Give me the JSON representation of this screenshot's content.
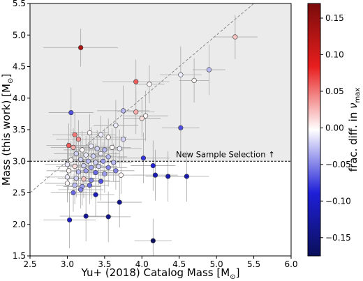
{
  "chart_data": {
    "type": "scatter",
    "xlabel_main": "Yu+ (2018) Catalog Mass [M",
    "xlabel_unit": "⊙",
    "xlabel_close": "]",
    "ylabel_main": "Mass (this work) [M",
    "ylabel_unit": "⊙",
    "ylabel_close": "]",
    "xlim": [
      2.5,
      6.0
    ],
    "ylim": [
      1.5,
      5.5
    ],
    "xticks": [
      "2.5",
      "3.0",
      "3.5",
      "4.0",
      "4.5",
      "5.0",
      "5.5",
      "6.0"
    ],
    "yticks": [
      "1.5",
      "2.0",
      "2.5",
      "3.0",
      "3.5",
      "4.0",
      "4.5",
      "5.0",
      "5.5"
    ],
    "selection_threshold": 3.0,
    "selection_label": "New Sample Selection ↑",
    "colorbar": {
      "label_main": "frac. diff. in ",
      "label_symbol": "ν",
      "label_sub": "max",
      "range": [
        -0.175,
        0.17
      ],
      "ticks": [
        "0.15",
        "0.10",
        "0.05",
        "0.00",
        "−0.05",
        "−0.10",
        "−0.15"
      ],
      "tick_values": [
        0.15,
        0.1,
        0.05,
        0.0,
        -0.05,
        -0.1,
        -0.15
      ],
      "colors": [
        "#0a0f5a",
        "#1f1fd8",
        "#ffffff",
        "#e81e1e",
        "#7a0b0b"
      ]
    },
    "points": [
      {
        "x": 5.25,
        "y": 4.97,
        "xe": 0.3,
        "ye": 0.35,
        "c": 0.02
      },
      {
        "x": 4.9,
        "y": 4.45,
        "xe": 0.22,
        "ye": 0.4,
        "c": -0.03
      },
      {
        "x": 4.7,
        "y": 4.28,
        "xe": 0.2,
        "ye": 0.35,
        "c": 0.0
      },
      {
        "x": 4.52,
        "y": 4.37,
        "xe": 0.28,
        "ye": 0.45,
        "c": -0.01
      },
      {
        "x": 4.1,
        "y": 4.22,
        "xe": 0.2,
        "ye": 0.3,
        "c": 0.0
      },
      {
        "x": 3.92,
        "y": 4.26,
        "xe": 0.45,
        "ye": 0.35,
        "c": 0.06
      },
      {
        "x": 3.18,
        "y": 4.8,
        "xe": 0.5,
        "ye": 0.3,
        "c": 0.13
      },
      {
        "x": 4.05,
        "y": 3.72,
        "xe": 0.3,
        "ye": 0.4,
        "c": 0.0
      },
      {
        "x": 4.0,
        "y": 3.68,
        "xe": 0.25,
        "ye": 0.3,
        "c": 0.01
      },
      {
        "x": 3.75,
        "y": 3.8,
        "xe": 0.35,
        "ye": 0.4,
        "c": -0.03
      },
      {
        "x": 3.92,
        "y": 3.78,
        "xe": 0.25,
        "ye": 0.35,
        "c": 0.03
      },
      {
        "x": 3.05,
        "y": 3.77,
        "xe": 0.3,
        "ye": 0.4,
        "c": -0.07
      },
      {
        "x": 3.65,
        "y": 3.57,
        "xe": 0.3,
        "ye": 0.4,
        "c": -0.01
      },
      {
        "x": 4.52,
        "y": 3.53,
        "xe": 0.25,
        "ye": 0.4,
        "c": -0.07
      },
      {
        "x": 3.1,
        "y": 3.42,
        "xe": 0.3,
        "ye": 0.35,
        "c": 0.05
      },
      {
        "x": 3.15,
        "y": 3.35,
        "xe": 0.3,
        "ye": 0.3,
        "c": 0.04
      },
      {
        "x": 3.3,
        "y": 3.45,
        "xe": 0.25,
        "ye": 0.3,
        "c": 0.0
      },
      {
        "x": 3.45,
        "y": 3.42,
        "xe": 0.2,
        "ye": 0.3,
        "c": -0.01
      },
      {
        "x": 3.55,
        "y": 3.38,
        "xe": 0.25,
        "ye": 0.3,
        "c": 0.0
      },
      {
        "x": 3.75,
        "y": 3.35,
        "xe": 0.3,
        "ye": 0.35,
        "c": -0.02
      },
      {
        "x": 3.02,
        "y": 3.25,
        "xe": 0.3,
        "ye": 0.35,
        "c": 0.06
      },
      {
        "x": 3.08,
        "y": 3.22,
        "xe": 0.3,
        "ye": 0.3,
        "c": 0.03
      },
      {
        "x": 3.2,
        "y": 3.18,
        "xe": 0.25,
        "ye": 0.3,
        "c": 0.0
      },
      {
        "x": 3.32,
        "y": 3.24,
        "xe": 0.25,
        "ye": 0.3,
        "c": -0.01
      },
      {
        "x": 3.4,
        "y": 3.2,
        "xe": 0.25,
        "ye": 0.3,
        "c": -0.02
      },
      {
        "x": 3.5,
        "y": 3.18,
        "xe": 0.25,
        "ye": 0.35,
        "c": -0.03
      },
      {
        "x": 3.6,
        "y": 3.22,
        "xe": 0.25,
        "ye": 0.3,
        "c": 0.0
      },
      {
        "x": 3.7,
        "y": 3.2,
        "xe": 0.3,
        "ye": 0.3,
        "c": -0.01
      },
      {
        "x": 3.12,
        "y": 3.12,
        "xe": 0.3,
        "ye": 0.3,
        "c": -0.02
      },
      {
        "x": 3.25,
        "y": 3.1,
        "xe": 0.25,
        "ye": 0.3,
        "c": -0.01
      },
      {
        "x": 3.35,
        "y": 3.08,
        "xe": 0.25,
        "ye": 0.3,
        "c": -0.02
      },
      {
        "x": 3.45,
        "y": 3.12,
        "xe": 0.25,
        "ye": 0.3,
        "c": -0.01
      },
      {
        "x": 3.55,
        "y": 3.07,
        "xe": 0.25,
        "ye": 0.3,
        "c": -0.03
      },
      {
        "x": 4.02,
        "y": 3.05,
        "xe": 0.35,
        "ye": 0.4,
        "c": -0.08
      },
      {
        "x": 3.05,
        "y": 3.02,
        "xe": 0.3,
        "ye": 0.3,
        "c": 0.0
      },
      {
        "x": 3.18,
        "y": 3.03,
        "xe": 0.25,
        "ye": 0.3,
        "c": -0.02
      },
      {
        "x": 3.28,
        "y": 3.0,
        "xe": 0.25,
        "ye": 0.3,
        "c": -0.03
      },
      {
        "x": 3.38,
        "y": 2.98,
        "xe": 0.25,
        "ye": 0.3,
        "c": -0.02
      },
      {
        "x": 3.48,
        "y": 3.0,
        "xe": 0.25,
        "ye": 0.3,
        "c": -0.04
      },
      {
        "x": 3.62,
        "y": 2.98,
        "xe": 0.25,
        "ye": 0.3,
        "c": -0.03
      },
      {
        "x": 3.0,
        "y": 2.95,
        "xe": 0.3,
        "ye": 0.35,
        "c": -0.01
      },
      {
        "x": 3.1,
        "y": 2.92,
        "xe": 0.25,
        "ye": 0.3,
        "c": 0.01
      },
      {
        "x": 3.22,
        "y": 2.93,
        "xe": 0.25,
        "ye": 0.3,
        "c": -0.02
      },
      {
        "x": 3.32,
        "y": 2.9,
        "xe": 0.25,
        "ye": 0.3,
        "c": -0.04
      },
      {
        "x": 3.42,
        "y": 2.92,
        "xe": 0.25,
        "ye": 0.3,
        "c": -0.02
      },
      {
        "x": 3.55,
        "y": 2.9,
        "xe": 0.25,
        "ye": 0.3,
        "c": -0.05
      },
      {
        "x": 4.15,
        "y": 2.93,
        "xe": 0.3,
        "ye": 0.4,
        "c": -0.09
      },
      {
        "x": 3.02,
        "y": 2.85,
        "xe": 0.3,
        "ye": 0.3,
        "c": 0.0
      },
      {
        "x": 3.15,
        "y": 2.83,
        "xe": 0.25,
        "ye": 0.3,
        "c": -0.03
      },
      {
        "x": 3.25,
        "y": 2.85,
        "xe": 0.25,
        "ye": 0.3,
        "c": -0.04
      },
      {
        "x": 3.38,
        "y": 2.82,
        "xe": 0.25,
        "ye": 0.3,
        "c": -0.06
      },
      {
        "x": 3.5,
        "y": 2.8,
        "xe": 0.25,
        "ye": 0.3,
        "c": -0.04
      },
      {
        "x": 3.65,
        "y": 2.85,
        "xe": 0.25,
        "ye": 0.3,
        "c": -0.05
      },
      {
        "x": 3.72,
        "y": 2.78,
        "xe": 0.3,
        "ye": 0.3,
        "c": 0.0
      },
      {
        "x": 4.18,
        "y": 2.78,
        "xe": 0.3,
        "ye": 0.4,
        "c": -0.11
      },
      {
        "x": 4.35,
        "y": 2.76,
        "xe": 0.3,
        "ye": 0.4,
        "c": -0.12
      },
      {
        "x": 4.6,
        "y": 2.76,
        "xe": 0.3,
        "ye": 0.4,
        "c": -0.12
      },
      {
        "x": 3.0,
        "y": 2.75,
        "xe": 0.3,
        "ye": 0.3,
        "c": -0.01
      },
      {
        "x": 3.12,
        "y": 2.73,
        "xe": 0.25,
        "ye": 0.3,
        "c": -0.02
      },
      {
        "x": 3.22,
        "y": 2.72,
        "xe": 0.25,
        "ye": 0.3,
        "c": 0.02
      },
      {
        "x": 3.32,
        "y": 2.7,
        "xe": 0.25,
        "ye": 0.3,
        "c": -0.05
      },
      {
        "x": 3.45,
        "y": 2.68,
        "xe": 0.25,
        "ye": 0.3,
        "c": -0.07
      },
      {
        "x": 3.0,
        "y": 2.65,
        "xe": 0.3,
        "ye": 0.3,
        "c": 0.0
      },
      {
        "x": 3.1,
        "y": 2.62,
        "xe": 0.25,
        "ye": 0.3,
        "c": -0.03
      },
      {
        "x": 3.2,
        "y": 2.6,
        "xe": 0.25,
        "ye": 0.3,
        "c": -0.04
      },
      {
        "x": 3.3,
        "y": 2.62,
        "xe": 0.25,
        "ye": 0.3,
        "c": -0.06
      },
      {
        "x": 3.18,
        "y": 2.55,
        "xe": 0.3,
        "ye": 0.3,
        "c": -0.05
      },
      {
        "x": 3.08,
        "y": 2.5,
        "xe": 0.3,
        "ye": 0.3,
        "c": -0.06
      },
      {
        "x": 3.38,
        "y": 2.47,
        "xe": 0.25,
        "ye": 0.35,
        "c": -0.11
      },
      {
        "x": 3.7,
        "y": 2.35,
        "xe": 0.3,
        "ye": 0.4,
        "c": -0.14
      },
      {
        "x": 3.03,
        "y": 2.07,
        "xe": 0.35,
        "ye": 0.45,
        "c": -0.1
      },
      {
        "x": 3.25,
        "y": 2.13,
        "xe": 0.35,
        "ye": 0.4,
        "c": -0.13
      },
      {
        "x": 3.55,
        "y": 2.12,
        "xe": 0.3,
        "ye": 0.4,
        "c": -0.14
      },
      {
        "x": 4.15,
        "y": 1.74,
        "xe": 0.25,
        "ye": 0.35,
        "c": -0.17
      }
    ]
  }
}
